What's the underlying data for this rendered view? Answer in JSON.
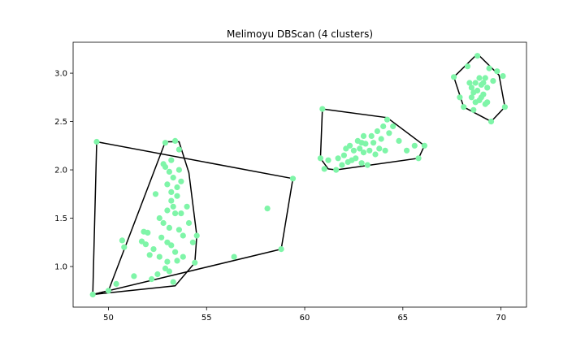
{
  "chart_data": {
    "type": "scatter",
    "title": "Melimoyu DBScan (4 clusters)",
    "xlabel": "",
    "ylabel": "",
    "xlim": [
      48.2,
      71.3
    ],
    "ylim": [
      0.58,
      3.32
    ],
    "xticks": [
      50,
      55,
      60,
      65,
      70
    ],
    "yticks": [
      1.0,
      1.5,
      2.0,
      2.5,
      3.0
    ],
    "grid": false,
    "point_color": "#7ff5a8",
    "hull_color": "#000000",
    "points": [
      [
        49.2,
        0.71
      ],
      [
        49.4,
        2.29
      ],
      [
        50.0,
        0.75
      ],
      [
        50.4,
        0.82
      ],
      [
        50.7,
        1.27
      ],
      [
        50.8,
        1.2
      ],
      [
        51.3,
        0.9
      ],
      [
        51.7,
        1.26
      ],
      [
        51.8,
        1.36
      ],
      [
        51.9,
        1.23
      ],
      [
        52.0,
        1.35
      ],
      [
        52.1,
        1.12
      ],
      [
        52.2,
        0.87
      ],
      [
        52.3,
        1.18
      ],
      [
        52.4,
        1.75
      ],
      [
        52.5,
        0.92
      ],
      [
        52.6,
        1.1
      ],
      [
        52.7,
        1.3
      ],
      [
        52.8,
        1.45
      ],
      [
        52.9,
        2.03
      ],
      [
        53.0,
        1.58
      ],
      [
        53.0,
        1.85
      ],
      [
        53.1,
        1.98
      ],
      [
        53.1,
        1.4
      ],
      [
        53.2,
        1.68
      ],
      [
        53.2,
        1.22
      ],
      [
        53.3,
        1.92
      ],
      [
        53.3,
        0.84
      ],
      [
        53.4,
        2.3
      ],
      [
        53.4,
        1.55
      ],
      [
        53.5,
        1.06
      ],
      [
        53.5,
        1.73
      ],
      [
        53.6,
        2.21
      ],
      [
        53.7,
        1.88
      ],
      [
        53.8,
        1.32
      ],
      [
        54.0,
        1.62
      ],
      [
        54.1,
        1.45
      ],
      [
        54.3,
        1.25
      ],
      [
        54.5,
        1.32
      ],
      [
        54.4,
        1.04
      ],
      [
        52.9,
        2.28
      ],
      [
        53.2,
        2.1
      ],
      [
        53.6,
        2.0
      ],
      [
        53.0,
        1.05
      ],
      [
        53.4,
        1.15
      ],
      [
        53.8,
        1.1
      ],
      [
        53.1,
        0.95
      ],
      [
        52.6,
        1.5
      ],
      [
        53.5,
        1.82
      ],
      [
        52.8,
        2.06
      ],
      [
        53.3,
        1.62
      ],
      [
        53.0,
        1.25
      ],
      [
        53.6,
        1.38
      ],
      [
        52.9,
        0.98
      ],
      [
        53.2,
        1.77
      ],
      [
        53.7,
        1.55
      ],
      [
        56.4,
        1.1
      ],
      [
        58.1,
        1.6
      ],
      [
        58.8,
        1.18
      ],
      [
        59.4,
        1.91
      ],
      [
        60.8,
        2.12
      ],
      [
        60.9,
        2.63
      ],
      [
        61.0,
        2.01
      ],
      [
        61.2,
        2.1
      ],
      [
        61.6,
        2.0
      ],
      [
        61.7,
        2.12
      ],
      [
        62.0,
        2.15
      ],
      [
        62.2,
        2.08
      ],
      [
        62.3,
        2.25
      ],
      [
        62.5,
        2.2
      ],
      [
        62.6,
        2.12
      ],
      [
        62.7,
        2.3
      ],
      [
        62.8,
        2.22
      ],
      [
        62.9,
        2.07
      ],
      [
        63.0,
        2.18
      ],
      [
        63.1,
        2.27
      ],
      [
        63.2,
        2.05
      ],
      [
        63.3,
        2.2
      ],
      [
        63.4,
        2.35
      ],
      [
        63.5,
        2.28
      ],
      [
        63.6,
        2.16
      ],
      [
        63.7,
        2.4
      ],
      [
        63.8,
        2.22
      ],
      [
        63.9,
        2.32
      ],
      [
        64.0,
        2.45
      ],
      [
        64.2,
        2.52
      ],
      [
        64.3,
        2.38
      ],
      [
        64.5,
        2.45
      ],
      [
        64.8,
        2.3
      ],
      [
        65.2,
        2.2
      ],
      [
        65.6,
        2.25
      ],
      [
        65.8,
        2.12
      ],
      [
        66.1,
        2.25
      ],
      [
        62.4,
        2.1
      ],
      [
        62.1,
        2.22
      ],
      [
        63.0,
        2.35
      ],
      [
        64.1,
        2.2
      ],
      [
        62.9,
        2.28
      ],
      [
        61.9,
        2.05
      ],
      [
        67.6,
        2.96
      ],
      [
        67.9,
        2.75
      ],
      [
        68.1,
        2.65
      ],
      [
        68.3,
        3.07
      ],
      [
        68.5,
        2.85
      ],
      [
        68.6,
        2.8
      ],
      [
        68.7,
        2.9
      ],
      [
        68.8,
        3.18
      ],
      [
        68.9,
        2.72
      ],
      [
        69.0,
        2.88
      ],
      [
        69.1,
        2.78
      ],
      [
        69.2,
        2.95
      ],
      [
        69.3,
        2.85
      ],
      [
        69.4,
        3.05
      ],
      [
        69.5,
        2.5
      ],
      [
        69.6,
        2.92
      ],
      [
        69.8,
        3.02
      ],
      [
        70.1,
        2.97
      ],
      [
        70.2,
        2.65
      ],
      [
        68.4,
        2.9
      ],
      [
        68.6,
        2.62
      ],
      [
        68.8,
        2.82
      ],
      [
        69.0,
        2.75
      ],
      [
        69.2,
        2.68
      ],
      [
        68.7,
        2.7
      ],
      [
        69.1,
        2.9
      ],
      [
        68.9,
        2.95
      ],
      [
        69.3,
        2.7
      ],
      [
        68.5,
        2.75
      ]
    ],
    "hulls": [
      [
        [
          49.2,
          0.71
        ],
        [
          53.4,
          0.8
        ],
        [
          54.4,
          1.04
        ],
        [
          54.5,
          1.32
        ],
        [
          54.1,
          1.97
        ],
        [
          53.6,
          2.29
        ],
        [
          52.9,
          2.29
        ],
        [
          50.0,
          0.75
        ]
      ],
      [
        [
          49.2,
          0.71
        ],
        [
          58.8,
          1.18
        ],
        [
          59.4,
          1.91
        ],
        [
          49.4,
          2.29
        ]
      ],
      [
        [
          60.8,
          2.12
        ],
        [
          61.2,
          2.01
        ],
        [
          61.6,
          2.0
        ],
        [
          65.8,
          2.12
        ],
        [
          66.1,
          2.25
        ],
        [
          64.2,
          2.54
        ],
        [
          60.9,
          2.63
        ]
      ],
      [
        [
          67.6,
          2.96
        ],
        [
          68.8,
          3.2
        ],
        [
          69.9,
          2.98
        ],
        [
          70.2,
          2.65
        ],
        [
          69.5,
          2.5
        ],
        [
          68.1,
          2.65
        ]
      ]
    ]
  }
}
